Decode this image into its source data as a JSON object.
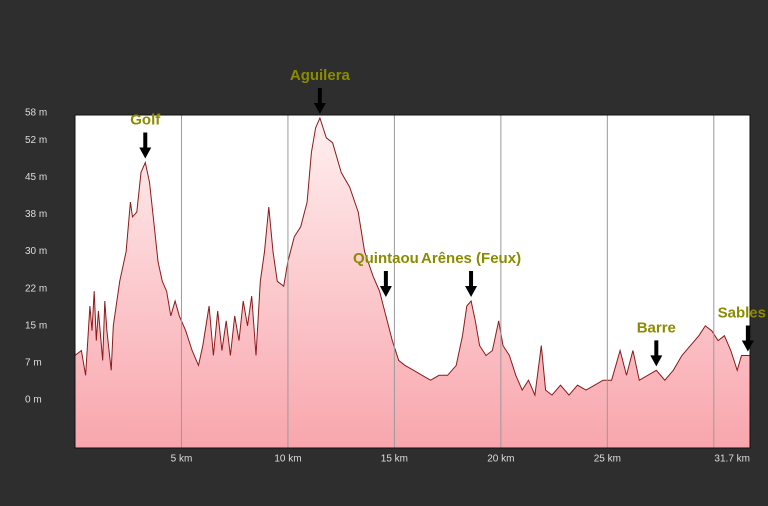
{
  "chart_data": {
    "type": "area",
    "x": [
      0,
      0.3,
      0.5,
      0.7,
      0.8,
      0.9,
      1.0,
      1.1,
      1.3,
      1.4,
      1.5,
      1.7,
      1.8,
      2.1,
      2.4,
      2.6,
      2.7,
      2.9,
      3.1,
      3.3,
      3.5,
      3.7,
      3.9,
      4.1,
      4.3,
      4.5,
      4.7,
      4.9,
      5.2,
      5.5,
      5.8,
      6.0,
      6.3,
      6.5,
      6.7,
      6.9,
      7.1,
      7.3,
      7.5,
      7.7,
      7.9,
      8.1,
      8.3,
      8.5,
      8.7,
      8.9,
      9.1,
      9.3,
      9.5,
      9.8,
      10.0,
      10.3,
      10.6,
      10.9,
      11.1,
      11.3,
      11.5,
      11.8,
      12.1,
      12.5,
      12.9,
      13.3,
      13.6,
      14.0,
      14.3,
      14.6,
      14.9,
      15.2,
      15.5,
      15.9,
      16.3,
      16.7,
      17.1,
      17.5,
      17.9,
      18.2,
      18.4,
      18.6,
      18.8,
      19.0,
      19.3,
      19.6,
      19.9,
      20.1,
      20.4,
      20.7,
      21.0,
      21.3,
      21.6,
      21.9,
      22.1,
      22.4,
      22.8,
      23.2,
      23.6,
      24.0,
      24.4,
      24.8,
      25.2,
      25.6,
      25.9,
      26.2,
      26.5,
      26.9,
      27.3,
      27.7,
      28.1,
      28.5,
      28.9,
      29.3,
      29.6,
      29.9,
      30.2,
      30.5,
      30.8,
      31.1,
      31.3,
      31.7
    ],
    "series": [
      {
        "color": "#8b1a1a",
        "values": [
          9,
          10,
          5,
          19,
          14,
          22,
          12,
          18,
          8,
          20,
          14,
          6,
          15,
          24,
          30,
          40,
          37,
          38,
          46,
          48,
          44,
          36,
          28,
          24,
          22,
          17,
          20,
          17,
          14,
          10,
          7,
          11,
          19,
          9,
          18,
          10,
          16,
          9,
          17,
          12,
          20,
          15,
          21,
          9,
          24,
          30,
          39,
          30,
          24,
          23,
          28,
          33,
          35,
          40,
          50,
          55,
          57,
          53,
          52,
          46,
          43,
          38,
          30,
          25,
          22,
          17,
          12,
          8,
          7,
          6,
          5,
          4,
          5,
          5,
          7,
          13,
          19,
          20,
          16,
          11,
          9,
          10,
          16,
          11,
          9,
          5,
          2,
          4,
          1,
          11,
          2,
          1,
          3,
          1,
          3,
          2,
          3,
          4,
          4,
          10,
          5,
          10,
          4,
          5,
          6,
          4,
          6,
          9,
          11,
          13,
          15,
          14,
          12,
          13,
          10,
          6,
          9,
          9
        ]
      }
    ],
    "xlim": [
      0,
      31.7
    ],
    "ylim": [
      -9.7,
      57.6
    ],
    "yticks": [
      {
        "value": 0,
        "label": "0 m"
      },
      {
        "value": 7.5,
        "label": "7 m"
      },
      {
        "value": 15,
        "label": "15 m"
      },
      {
        "value": 22.5,
        "label": "22 m"
      },
      {
        "value": 30,
        "label": "30 m"
      },
      {
        "value": 37.5,
        "label": "38 m"
      },
      {
        "value": 45,
        "label": "45 m"
      },
      {
        "value": 52.5,
        "label": "52 m"
      },
      {
        "value": 58,
        "label": "58 m"
      }
    ],
    "xticks": [
      {
        "value": 5,
        "label": "5 km"
      },
      {
        "value": 10,
        "label": "10 km"
      },
      {
        "value": 15,
        "label": "15 km"
      },
      {
        "value": 20,
        "label": "20 km"
      },
      {
        "value": 25,
        "label": "25 km"
      },
      {
        "value": 30,
        "label": null
      },
      {
        "value": 31.7,
        "label": "31.7 km"
      }
    ],
    "grid": true,
    "annotations": [
      {
        "text": "Golf",
        "x": 3.3,
        "y": 48
      },
      {
        "text": "Aguilera",
        "x": 11.5,
        "y": 57
      },
      {
        "text": "Quintaou",
        "x": 14.6,
        "y": 20
      },
      {
        "text": "Arênes (Feux)",
        "x": 18.6,
        "y": 20
      },
      {
        "text": "Barre",
        "x": 27.3,
        "y": 6
      },
      {
        "text": "Sables",
        "x": 31.6,
        "y": 9
      }
    ]
  }
}
